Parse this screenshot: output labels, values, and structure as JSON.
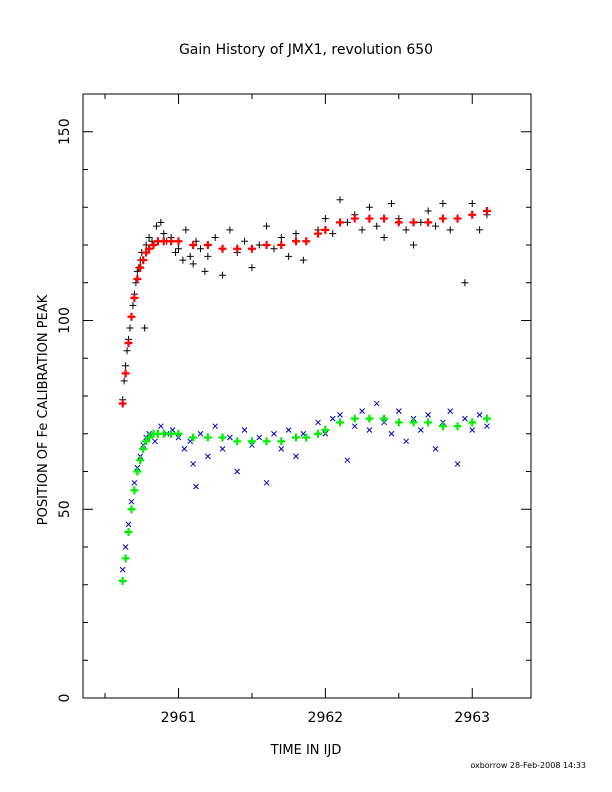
{
  "chart_data": {
    "type": "scatter",
    "title": "Gain History of JMX1, revolution 650",
    "xlabel": "TIME IN IJD",
    "ylabel": "POSITION OF Fe CALIBRATION PEAK",
    "xlim": [
      2960.35,
      2963.4
    ],
    "ylim": [
      0,
      160
    ],
    "xticks": [
      2961,
      2962,
      2963
    ],
    "yticks": [
      0,
      50,
      100,
      150
    ],
    "grid": false,
    "footer": "oxborrow 28-Feb-2008 14:33",
    "colors": {
      "upper_points": "#000000",
      "upper_fit": "#ff0000",
      "lower_points": "#0000cc",
      "lower_fit": "#00ee00"
    },
    "series": [
      {
        "marker": "plus",
        "color": "#000000",
        "x": [
          2960.62,
          2960.63,
          2960.64,
          2960.65,
          2960.66,
          2960.67,
          2960.68,
          2960.69,
          2960.7,
          2960.71,
          2960.72,
          2960.73,
          2960.74,
          2960.75,
          2960.77,
          2960.78,
          2960.8,
          2960.82,
          2960.85,
          2960.88,
          2960.9,
          2960.92,
          2960.95,
          2960.98,
          2961.0,
          2961.03,
          2961.05,
          2961.08,
          2961.1,
          2961.12,
          2961.15,
          2961.18,
          2961.2,
          2961.25,
          2961.3,
          2961.35,
          2961.4,
          2961.45,
          2961.5,
          2961.55,
          2961.6,
          2961.65,
          2961.7,
          2961.75,
          2961.8,
          2961.85,
          2961.95,
          2962.0,
          2962.05,
          2962.1,
          2962.15,
          2962.2,
          2962.25,
          2962.3,
          2962.35,
          2962.4,
          2962.45,
          2962.5,
          2962.55,
          2962.6,
          2962.65,
          2962.7,
          2962.75,
          2962.8,
          2962.85,
          2962.9,
          2962.95,
          2963.0,
          2963.05,
          2963.1
        ],
        "y": [
          79,
          84,
          88,
          92,
          95,
          98,
          101,
          104,
          107,
          110,
          113,
          114,
          116,
          118,
          98,
          120,
          122,
          121,
          125,
          126,
          123,
          121,
          122,
          118,
          119,
          116,
          124,
          117,
          115,
          121,
          119,
          113,
          117,
          122,
          112,
          124,
          118,
          121,
          114,
          120,
          125,
          119,
          122,
          117,
          123,
          116,
          124,
          127,
          123,
          132,
          126,
          128,
          124,
          130,
          125,
          122,
          131,
          127,
          124,
          120,
          126,
          129,
          125,
          131,
          124,
          127,
          110,
          131,
          124,
          128
        ]
      },
      {
        "marker": "x",
        "color": "#0000cc",
        "x": [
          2960.62,
          2960.64,
          2960.66,
          2960.68,
          2960.7,
          2960.72,
          2960.74,
          2960.76,
          2960.78,
          2960.8,
          2960.84,
          2960.88,
          2960.92,
          2960.96,
          2961.0,
          2961.04,
          2961.08,
          2961.1,
          2961.12,
          2961.15,
          2961.2,
          2961.25,
          2961.3,
          2961.35,
          2961.4,
          2961.45,
          2961.5,
          2961.55,
          2961.6,
          2961.65,
          2961.7,
          2961.75,
          2961.8,
          2961.85,
          2961.95,
          2962.0,
          2962.05,
          2962.1,
          2962.15,
          2962.2,
          2962.25,
          2962.3,
          2962.35,
          2962.4,
          2962.45,
          2962.5,
          2962.55,
          2962.6,
          2962.65,
          2962.7,
          2962.75,
          2962.8,
          2962.85,
          2962.9,
          2962.95,
          2963.0,
          2963.05,
          2963.1
        ],
        "y": [
          34,
          40,
          46,
          52,
          57,
          61,
          64,
          67,
          69,
          70,
          68,
          72,
          70,
          71,
          69,
          66,
          68,
          62,
          56,
          70,
          64,
          72,
          66,
          69,
          60,
          71,
          67,
          69,
          57,
          70,
          66,
          71,
          64,
          70,
          73,
          70,
          74,
          75,
          63,
          72,
          76,
          71,
          78,
          73,
          70,
          76,
          68,
          74,
          71,
          75,
          66,
          73,
          76,
          62,
          74,
          71,
          75,
          72
        ]
      },
      {
        "marker": "plus",
        "color": "#ff0000",
        "name_hidden": true,
        "x": [
          2960.62,
          2960.64,
          2960.66,
          2960.68,
          2960.7,
          2960.72,
          2960.74,
          2960.76,
          2960.78,
          2960.8,
          2960.83,
          2960.86,
          2960.9,
          2960.95,
          2961.0,
          2961.1,
          2961.2,
          2961.3,
          2961.4,
          2961.5,
          2961.6,
          2961.7,
          2961.8,
          2961.87,
          2961.95,
          2962.0,
          2962.1,
          2962.2,
          2962.3,
          2962.4,
          2962.5,
          2962.6,
          2962.7,
          2962.8,
          2962.9,
          2963.0,
          2963.1
        ],
        "y": [
          78,
          86,
          94,
          101,
          106,
          111,
          114,
          116,
          118,
          119,
          120,
          121,
          121,
          121,
          121,
          120,
          120,
          119,
          119,
          119,
          120,
          120,
          121,
          121,
          123,
          124,
          126,
          127,
          127,
          127,
          126,
          126,
          126,
          127,
          127,
          128,
          129
        ]
      },
      {
        "marker": "plus",
        "color": "#00ee00",
        "name_hidden": true,
        "x": [
          2960.62,
          2960.64,
          2960.66,
          2960.68,
          2960.7,
          2960.72,
          2960.74,
          2960.76,
          2960.78,
          2960.8,
          2960.83,
          2960.86,
          2960.9,
          2960.95,
          2961.0,
          2961.1,
          2961.2,
          2961.3,
          2961.4,
          2961.5,
          2961.6,
          2961.7,
          2961.8,
          2961.87,
          2961.95,
          2962.0,
          2962.1,
          2962.2,
          2962.3,
          2962.4,
          2962.5,
          2962.6,
          2962.7,
          2962.8,
          2962.9,
          2963.0,
          2963.1
        ],
        "y": [
          31,
          37,
          44,
          50,
          55,
          60,
          63,
          66,
          68,
          69,
          70,
          70,
          70,
          70,
          70,
          69,
          69,
          69,
          68,
          68,
          68,
          68,
          69,
          69,
          70,
          71,
          73,
          74,
          74,
          74,
          73,
          73,
          73,
          72,
          72,
          73,
          74
        ]
      }
    ]
  }
}
